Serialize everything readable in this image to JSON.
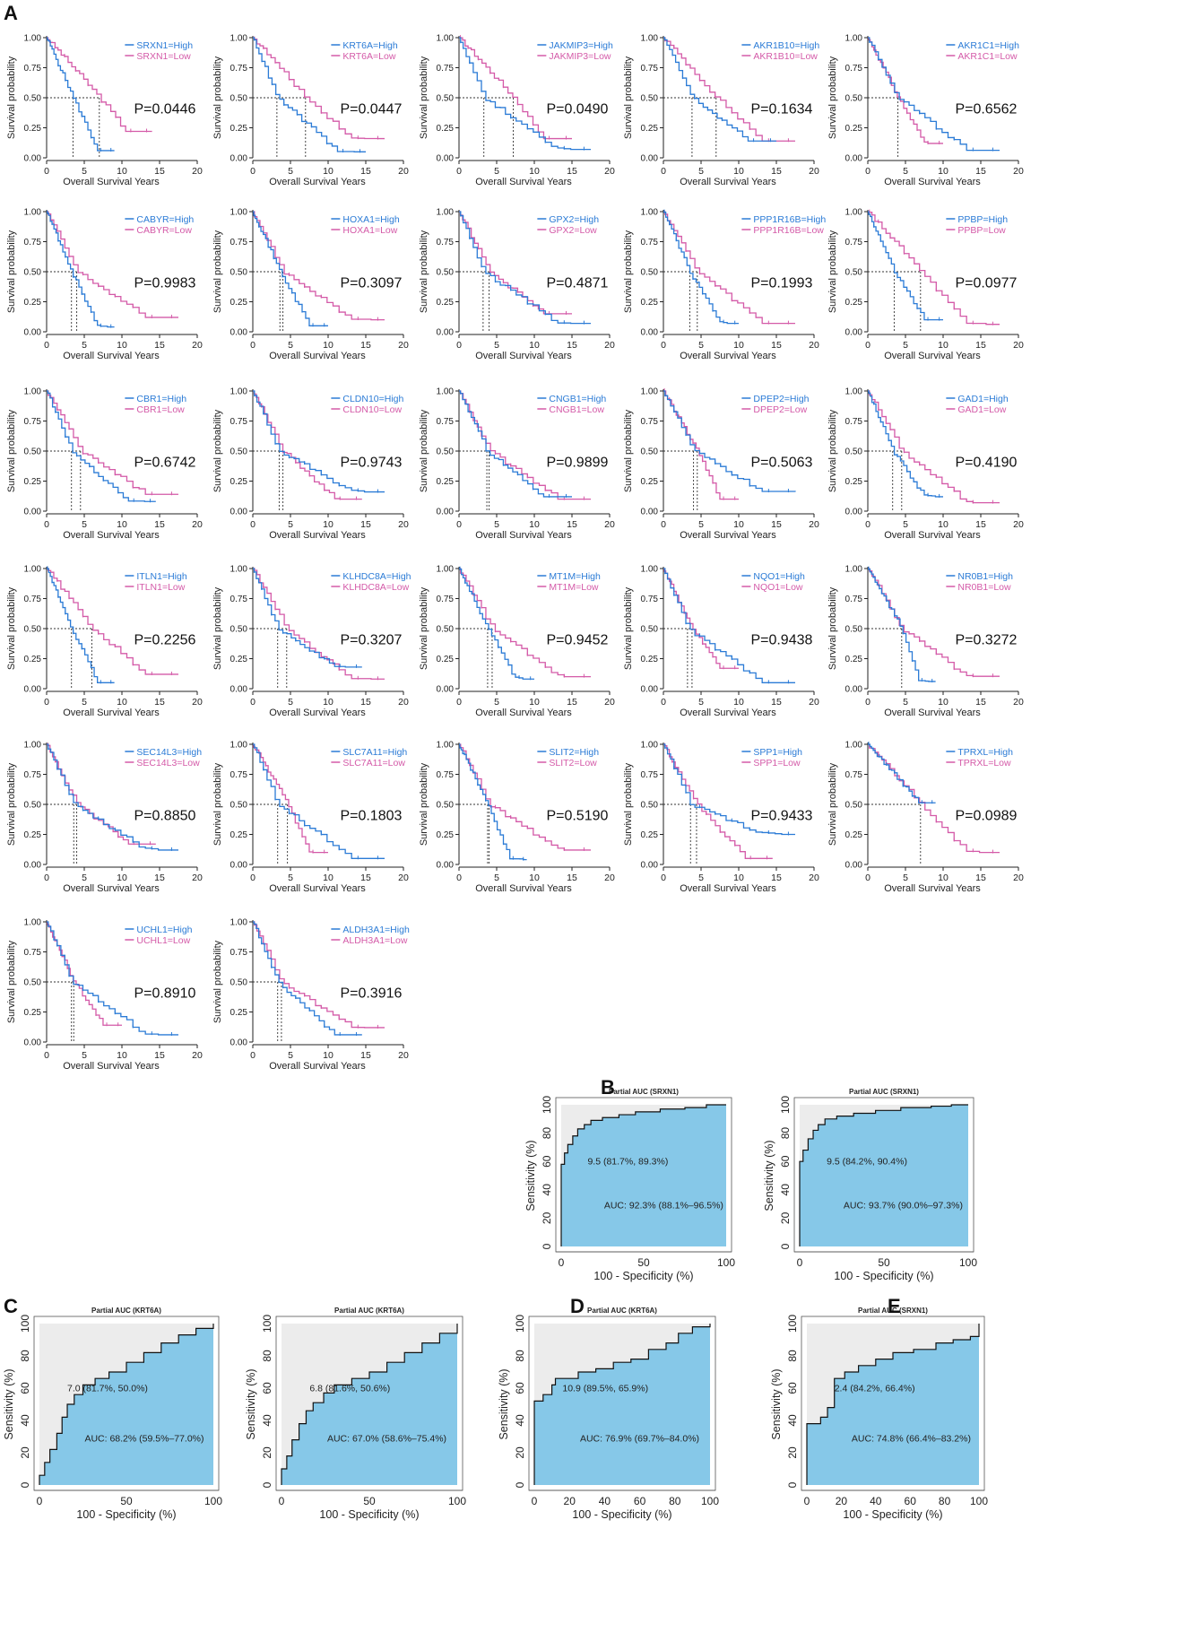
{
  "figure": {
    "panel_labels": [
      "A",
      "B",
      "C",
      "D",
      "E"
    ]
  },
  "colors": {
    "high": "#2b7bd6",
    "low": "#d45aa8",
    "roc_fill": "#86c8e8",
    "roc_bg": "#ececec",
    "axis": "#222222"
  },
  "chart_data": [
    {
      "type": "line",
      "group": "kaplan_meier",
      "xlabel": "Overall Survival Years",
      "ylabel": "Survival probability",
      "xticks": [
        0,
        5,
        10,
        15,
        20
      ],
      "yticks": [
        "0.00",
        "0.25",
        "0.50",
        "0.75",
        "1.00"
      ],
      "xlim": [
        0,
        20
      ],
      "ylim": [
        0,
        1
      ],
      "panels": [
        {
          "gene": "SRXN1",
          "high_label": "SRXN1=High",
          "low_label": "SRXN1=Low",
          "p": "P=0.0446",
          "high_end": 9,
          "low_end": 14,
          "high_tail": 0.06,
          "low_tail": 0.22,
          "medians": [
            3.5,
            7
          ]
        },
        {
          "gene": "KRT6A",
          "high_label": "KRT6A=High",
          "low_label": "KRT6A=Low",
          "p": "P=0.0447",
          "high_end": 15,
          "low_end": 17.5,
          "high_tail": 0.05,
          "low_tail": 0.16,
          "medians": [
            3.2,
            7
          ]
        },
        {
          "gene": "JAKMIP3",
          "high_label": "JAKMIP3=High",
          "low_label": "JAKMIP3=Low",
          "p": "P=0.0490",
          "high_end": 17.5,
          "low_end": 15,
          "high_tail": 0.07,
          "low_tail": 0.16,
          "medians": [
            3.3,
            7.2
          ]
        },
        {
          "gene": "AKR1B10",
          "high_label": "AKR1B10=High",
          "low_label": "AKR1B10=Low",
          "p": "P=0.1634",
          "high_end": 15,
          "low_end": 17.5,
          "high_tail": 0.14,
          "low_tail": 0.14,
          "medians": [
            3.8,
            7
          ]
        },
        {
          "gene": "AKR1C1",
          "high_label": "AKR1C1=High",
          "low_label": "AKR1C1=Low",
          "p": "P=0.6562",
          "high_end": 17.5,
          "low_end": 10,
          "high_tail": 0.06,
          "low_tail": 0.12,
          "medians": [
            4
          ]
        },
        {
          "gene": "CABYR",
          "high_label": "CABYR=High",
          "low_label": "CABYR=Low",
          "p": "P=0.9983",
          "high_end": 9,
          "low_end": 17.5,
          "high_tail": 0.04,
          "low_tail": 0.12,
          "medians": [
            3.3,
            4
          ]
        },
        {
          "gene": "HOXA1",
          "high_label": "HOXA1=High",
          "low_label": "HOXA1=Low",
          "p": "P=0.3097",
          "high_end": 10,
          "low_end": 17.5,
          "high_tail": 0.05,
          "low_tail": 0.1,
          "medians": [
            3.6,
            4
          ]
        },
        {
          "gene": "GPX2",
          "high_label": "GPX2=High",
          "low_label": "GPX2=Low",
          "p": "P=0.4871",
          "high_end": 17.5,
          "low_end": 15,
          "high_tail": 0.07,
          "low_tail": 0.15,
          "medians": [
            3.2,
            4
          ]
        },
        {
          "gene": "PPP1R16B",
          "high_label": "PPP1R16B=High",
          "low_label": "PPP1R16B=Low",
          "p": "P=0.1993",
          "high_end": 10,
          "low_end": 17.5,
          "high_tail": 0.07,
          "low_tail": 0.07,
          "medians": [
            3.5,
            4.5
          ]
        },
        {
          "gene": "PPBP",
          "high_label": "PPBP=High",
          "low_label": "PPBP=Low",
          "p": "P=0.0977",
          "high_end": 10,
          "low_end": 17.5,
          "high_tail": 0.1,
          "low_tail": 0.06,
          "medians": [
            3.5,
            7
          ]
        },
        {
          "gene": "CBR1",
          "high_label": "CBR1=High",
          "low_label": "CBR1=Low",
          "p": "P=0.6742",
          "high_end": 14.5,
          "low_end": 17.5,
          "high_tail": 0.08,
          "low_tail": 0.14,
          "medians": [
            3.3,
            4.5
          ]
        },
        {
          "gene": "CLDN10",
          "high_label": "CLDN10=High",
          "low_label": "CLDN10=Low",
          "p": "P=0.9743",
          "high_end": 17.5,
          "low_end": 14.5,
          "high_tail": 0.16,
          "low_tail": 0.1,
          "medians": [
            3.5,
            4
          ]
        },
        {
          "gene": "CNGB1",
          "high_label": "CNGB1=High",
          "low_label": "CNGB1=Low",
          "p": "P=0.9899",
          "high_end": 15,
          "low_end": 17.5,
          "high_tail": 0.12,
          "low_tail": 0.1,
          "medians": [
            3.7,
            4
          ]
        },
        {
          "gene": "DPEP2",
          "high_label": "DPEP2=High",
          "low_label": "DPEP2=Low",
          "p": "P=0.5063",
          "high_end": 17.5,
          "low_end": 10,
          "high_tail": 0.16,
          "low_tail": 0.1,
          "medians": [
            4,
            4.5
          ]
        },
        {
          "gene": "GAD1",
          "high_label": "GAD1=High",
          "low_label": "GAD1=Low",
          "p": "P=0.4190",
          "high_end": 10,
          "low_end": 17.5,
          "high_tail": 0.12,
          "low_tail": 0.07,
          "medians": [
            3.3,
            4.5
          ]
        },
        {
          "gene": "ITLN1",
          "high_label": "ITLN1=High",
          "low_label": "ITLN1=Low",
          "p": "P=0.2256",
          "high_end": 9,
          "low_end": 17.5,
          "high_tail": 0.05,
          "low_tail": 0.12,
          "medians": [
            3.3,
            6
          ]
        },
        {
          "gene": "KLHDC8A",
          "high_label": "KLHDC8A=High",
          "low_label": "KLHDC8A=Low",
          "p": "P=0.3207",
          "high_end": 14.5,
          "low_end": 17.5,
          "high_tail": 0.18,
          "low_tail": 0.08,
          "medians": [
            3.3,
            4.5
          ]
        },
        {
          "gene": "MT1M",
          "high_label": "MT1M=High",
          "low_label": "MT1M=Low",
          "p": "P=0.9452",
          "high_end": 10,
          "low_end": 17.5,
          "high_tail": 0.08,
          "low_tail": 0.1,
          "medians": [
            3.8,
            4.4
          ]
        },
        {
          "gene": "NQO1",
          "high_label": "NQO1=High",
          "low_label": "NQO1=Low",
          "p": "P=0.9438",
          "high_end": 17.5,
          "low_end": 10,
          "high_tail": 0.05,
          "low_tail": 0.17,
          "medians": [
            3.2,
            3.8
          ]
        },
        {
          "gene": "NR0B1",
          "high_label": "NR0B1=High",
          "low_label": "NR0B1=Low",
          "p": "P=0.3272",
          "high_end": 9,
          "low_end": 17.5,
          "high_tail": 0.06,
          "low_tail": 0.1,
          "medians": [
            4.5
          ]
        },
        {
          "gene": "SEC14L3",
          "high_label": "SEC14L3=High",
          "low_label": "SEC14L3=Low",
          "p": "P=0.8850",
          "high_end": 17.5,
          "low_end": 14.5,
          "high_tail": 0.12,
          "low_tail": 0.17,
          "medians": [
            3.6,
            4
          ]
        },
        {
          "gene": "SLC7A11",
          "high_label": "SLC7A11=High",
          "low_label": "SLC7A11=Low",
          "p": "P=0.1803",
          "high_end": 17.5,
          "low_end": 10,
          "high_tail": 0.05,
          "low_tail": 0.1,
          "medians": [
            3.3,
            4.6
          ]
        },
        {
          "gene": "SLIT2",
          "high_label": "SLIT2=High",
          "low_label": "SLIT2=Low",
          "p": "P=0.5190",
          "high_end": 9,
          "low_end": 17.5,
          "high_tail": 0.04,
          "low_tail": 0.12,
          "medians": [
            3.8,
            4
          ]
        },
        {
          "gene": "SPP1",
          "high_label": "SPP1=High",
          "low_label": "SPP1=Low",
          "p": "P=0.9433",
          "high_end": 17.5,
          "low_end": 14.5,
          "high_tail": 0.25,
          "low_tail": 0.05,
          "medians": [
            3.6,
            4.4
          ]
        },
        {
          "gene": "TPRXL",
          "high_label": "TPRXL=High",
          "low_label": "TPRXL=Low",
          "p": "P=0.0989",
          "high_end": 9,
          "low_end": 17.5,
          "high_tail": 0.1,
          "low_tail": 0.1,
          "medians": [
            7
          ]
        },
        {
          "gene": "UCHL1",
          "high_label": "UCHL1=High",
          "low_label": "UCHL1=Low",
          "p": "P=0.8910",
          "high_end": 17.5,
          "low_end": 10,
          "high_tail": 0.06,
          "low_tail": 0.14,
          "medians": [
            3.3,
            3.6
          ]
        },
        {
          "gene": "ALDH3A1",
          "high_label": "ALDH3A1=High",
          "low_label": "ALDH3A1=Low",
          "p": "P=0.3916",
          "high_end": 14.5,
          "low_end": 17.5,
          "high_tail": 0.06,
          "low_tail": 0.12,
          "medians": [
            3.3,
            3.8
          ]
        }
      ]
    },
    {
      "type": "area",
      "group": "roc",
      "xlabel": "100 - Specificity (%)",
      "ylabel": "Sensitivity (%)",
      "xlim": [
        0,
        100
      ],
      "ylim": [
        0,
        100
      ],
      "panels": [
        {
          "panel": "B",
          "title": "Partial AUC (SRXN1)",
          "xticks": [
            0,
            50,
            100
          ],
          "point_label": "9.5 (81.7%, 89.3%)",
          "auc": "AUC: 92.3% (88.1%–96.5%)",
          "curve": [
            [
              0,
              0
            ],
            [
              0,
              58
            ],
            [
              2,
              66
            ],
            [
              4,
              72
            ],
            [
              7,
              78
            ],
            [
              10,
              83
            ],
            [
              14,
              86
            ],
            [
              18,
              89
            ],
            [
              25,
              91
            ],
            [
              35,
              93
            ],
            [
              45,
              95
            ],
            [
              60,
              97
            ],
            [
              75,
              98
            ],
            [
              88,
              100
            ],
            [
              100,
              100
            ]
          ]
        },
        {
          "panel": "B",
          "title": "Partial AUC (SRXN1)",
          "xticks": [
            0,
            50,
            100
          ],
          "point_label": "9.5 (84.2%, 90.4%)",
          "auc": "AUC: 93.7% (90.0%–97.3%)",
          "curve": [
            [
              0,
              0
            ],
            [
              0,
              60
            ],
            [
              2,
              68
            ],
            [
              5,
              76
            ],
            [
              8,
              82
            ],
            [
              11,
              86
            ],
            [
              15,
              90
            ],
            [
              22,
              92
            ],
            [
              32,
              94
            ],
            [
              45,
              96
            ],
            [
              60,
              98
            ],
            [
              78,
              99
            ],
            [
              90,
              100
            ],
            [
              100,
              100
            ]
          ]
        },
        {
          "panel": "C",
          "title": "Partial AUC (KRT6A)",
          "xticks": [
            0,
            50,
            100
          ],
          "point_label": "7.0 (81.7%, 50.0%)",
          "auc": "AUC: 68.2% (59.5%–77.0%)",
          "curve": [
            [
              0,
              0
            ],
            [
              0,
              6
            ],
            [
              3,
              14
            ],
            [
              6,
              22
            ],
            [
              10,
              32
            ],
            [
              13,
              42
            ],
            [
              16,
              50
            ],
            [
              20,
              56
            ],
            [
              25,
              62
            ],
            [
              32,
              66
            ],
            [
              40,
              70
            ],
            [
              50,
              76
            ],
            [
              60,
              82
            ],
            [
              70,
              88
            ],
            [
              80,
              93
            ],
            [
              90,
              97
            ],
            [
              100,
              100
            ]
          ]
        },
        {
          "panel": "C",
          "title": "Partial AUC (KRT6A)",
          "xticks": [
            0,
            50,
            100
          ],
          "point_label": "6.8 (81.6%, 50.6%)",
          "auc": "AUC: 67.0% (58.6%–75.4%)",
          "curve": [
            [
              0,
              0
            ],
            [
              0,
              10
            ],
            [
              3,
              18
            ],
            [
              6,
              28
            ],
            [
              10,
              38
            ],
            [
              14,
              46
            ],
            [
              18,
              51
            ],
            [
              24,
              57
            ],
            [
              30,
              62
            ],
            [
              40,
              66
            ],
            [
              50,
              70
            ],
            [
              60,
              76
            ],
            [
              70,
              82
            ],
            [
              80,
              88
            ],
            [
              90,
              94
            ],
            [
              100,
              100
            ]
          ]
        },
        {
          "panel": "D",
          "title": "Partial AUC (KRT6A)",
          "xticks": [
            0,
            20,
            40,
            60,
            80,
            100
          ],
          "point_label": "10.9 (89.5%, 65.9%)",
          "auc": "AUC: 76.9% (69.7%–84.0%)",
          "curve": [
            [
              0,
              0
            ],
            [
              0,
              52
            ],
            [
              5,
              56
            ],
            [
              10,
              62
            ],
            [
              12,
              66
            ],
            [
              20,
              66
            ],
            [
              25,
              70
            ],
            [
              35,
              72
            ],
            [
              45,
              76
            ],
            [
              55,
              78
            ],
            [
              65,
              84
            ],
            [
              75,
              88
            ],
            [
              82,
              94
            ],
            [
              90,
              98
            ],
            [
              100,
              100
            ]
          ]
        },
        {
          "panel": "E",
          "title": "Partial AUC (SRXN1)",
          "xticks": [
            0,
            20,
            40,
            60,
            80,
            100
          ],
          "point_label": "2.4 (84.2%, 66.4%)",
          "auc": "AUC: 74.8% (66.4%–83.2%)",
          "curve": [
            [
              0,
              0
            ],
            [
              0,
              38
            ],
            [
              8,
              42
            ],
            [
              12,
              48
            ],
            [
              16,
              66
            ],
            [
              22,
              70
            ],
            [
              30,
              74
            ],
            [
              40,
              78
            ],
            [
              50,
              82
            ],
            [
              62,
              84
            ],
            [
              75,
              88
            ],
            [
              85,
              90
            ],
            [
              95,
              92
            ],
            [
              100,
              100
            ]
          ]
        }
      ]
    }
  ]
}
